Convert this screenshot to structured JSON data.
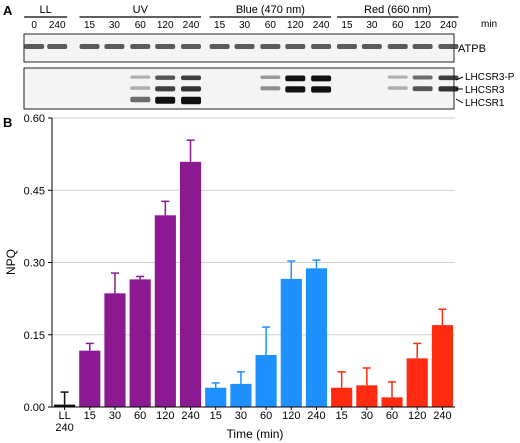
{
  "panel_a": {
    "label": "A",
    "groups": [
      "LL",
      "UV",
      "Blue (470 nm)",
      "Red (660 nm)"
    ],
    "lane_labels": [
      "0",
      "240",
      "15",
      "30",
      "60",
      "120",
      "240",
      "15",
      "30",
      "60",
      "120",
      "240",
      "15",
      "30",
      "60",
      "120",
      "240"
    ],
    "unit": "min",
    "blot1_label": "ATPB",
    "blot2_labels": [
      "LHCSR3-P",
      "LHCSR3",
      "LHCSR1"
    ],
    "band_intensity": {
      "lhcsr3p": [
        0,
        0,
        0,
        0,
        0.05,
        0.45,
        0.55,
        0,
        0,
        0.15,
        0.9,
        0.95,
        0,
        0,
        0.05,
        0.35,
        0.55
      ],
      "lhcsr3": [
        0,
        0,
        0,
        0,
        0.05,
        0.55,
        0.6,
        0,
        0,
        0.2,
        0.9,
        0.95,
        0,
        0,
        0.05,
        0.45,
        0.6
      ],
      "lhcsr1": [
        0,
        0,
        0,
        0,
        0.35,
        0.85,
        1.0,
        0,
        0,
        0,
        0,
        0,
        0,
        0,
        0,
        0,
        0
      ]
    },
    "colors": {
      "band": "#111111",
      "blot_bg": "#f4f4f4",
      "blot_border": "#222222"
    }
  },
  "chart_data": {
    "type": "bar",
    "panel_label": "B",
    "ylabel": "NPQ",
    "xlabel": "Time (min)",
    "ylim": [
      0,
      0.6
    ],
    "yticks": [
      0,
      0.15,
      0.3,
      0.45,
      0.6
    ],
    "ytick_labels": [
      "0.00",
      "0.15",
      "0.30",
      "0.45",
      "0.60"
    ],
    "grid": true,
    "categories": [
      "LL\n240",
      "15",
      "30",
      "60",
      "120",
      "240",
      "15",
      "30",
      "60",
      "120",
      "240",
      "15",
      "30",
      "60",
      "120",
      "240"
    ],
    "values": [
      0.005,
      0.117,
      0.236,
      0.265,
      0.398,
      0.509,
      0.04,
      0.048,
      0.108,
      0.266,
      0.288,
      0.04,
      0.045,
      0.02,
      0.101,
      0.17
    ],
    "errors": [
      0.026,
      0.015,
      0.042,
      0.006,
      0.029,
      0.045,
      0.01,
      0.025,
      0.058,
      0.037,
      0.017,
      0.033,
      0.036,
      0.032,
      0.031,
      0.033
    ],
    "colors": [
      "#111111",
      "#8b1a92",
      "#8b1a92",
      "#8b1a92",
      "#8b1a92",
      "#8b1a92",
      "#1e90ff",
      "#1e90ff",
      "#1e90ff",
      "#1e90ff",
      "#1e90ff",
      "#ff2a10",
      "#ff2a10",
      "#ff2a10",
      "#ff2a10",
      "#ff2a10"
    ]
  }
}
